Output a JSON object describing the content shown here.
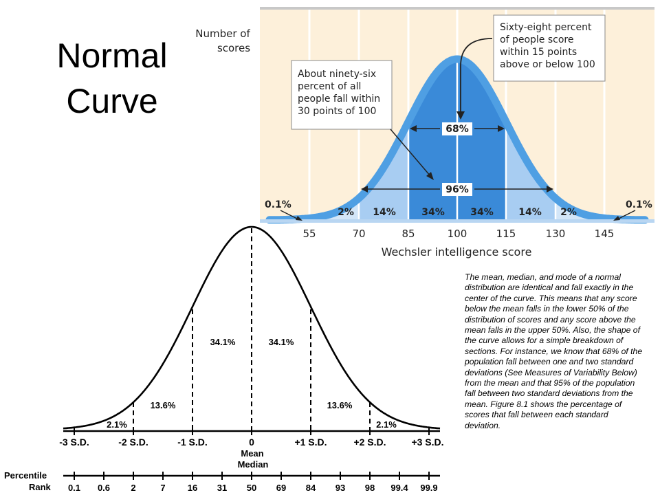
{
  "slide": {
    "title_line1": "Normal",
    "title_line2": "Curve",
    "description": "The mean, median, and mode of a normal distribution are identical and fall exactly in the center of the curve.  This means that any score below the mean falls in the lower 50% of the distribution of scores and any score above the mean falls in the upper 50%.  Also, the shape of the curve allows for a simple breakdown of sections.  For instance, we know that 68% of the population fall between one and two standard deviations (See Measures of Variability Below) from the mean and that 95% of the population fall between two standard deviations from the mean.  Figure 8.1 shows the percentage of scores that fall between each standard deviation."
  },
  "colors": {
    "top_background": "#fdf0da",
    "curve_stroke": "#4f9fe3",
    "band_dark": "#3a8ad8",
    "band_mid": "#a8cdf2",
    "band_light": "#d3e6f8",
    "callout_border": "#8a8a8a"
  },
  "wechsler": {
    "y_label_line1": "Number of",
    "y_label_line2": "scores",
    "x_label": "Wechsler intelligence score",
    "ticks": [
      "55",
      "70",
      "85",
      "100",
      "115",
      "130",
      "145"
    ],
    "segments": [
      "2%",
      "14%",
      "34%",
      "34%",
      "14%",
      "2%"
    ],
    "left_tail": "0.1%",
    "right_tail": "0.1%",
    "span_68_label": "68%",
    "span_96_label": "96%",
    "callout_left": [
      "About ninety-six",
      "percent of all",
      "people fall within",
      "30 points of 100"
    ],
    "callout_right": [
      "Sixty-eight percent",
      "of people score",
      "within 15 points",
      "above or below 100"
    ]
  },
  "sd_chart": {
    "region_labels": [
      "2.1%",
      "13.6%",
      "34.1%",
      "34.1%",
      "13.6%",
      "2.1%"
    ],
    "sd_labels": [
      "-3 S.D.",
      "-2 S.D.",
      "-1 S.D.",
      "0",
      "+1 S.D.",
      "+2 S.D.",
      "+3 S.D."
    ],
    "mean_label": "Mean",
    "median_label": "Median",
    "percentile_label_line1": "Percentile",
    "percentile_label_line2": "Rank",
    "percentile_values": [
      "0.1",
      "0.6",
      "2",
      "7",
      "16",
      "31",
      "50",
      "69",
      "84",
      "93",
      "98",
      "99.4",
      "99.9"
    ]
  }
}
